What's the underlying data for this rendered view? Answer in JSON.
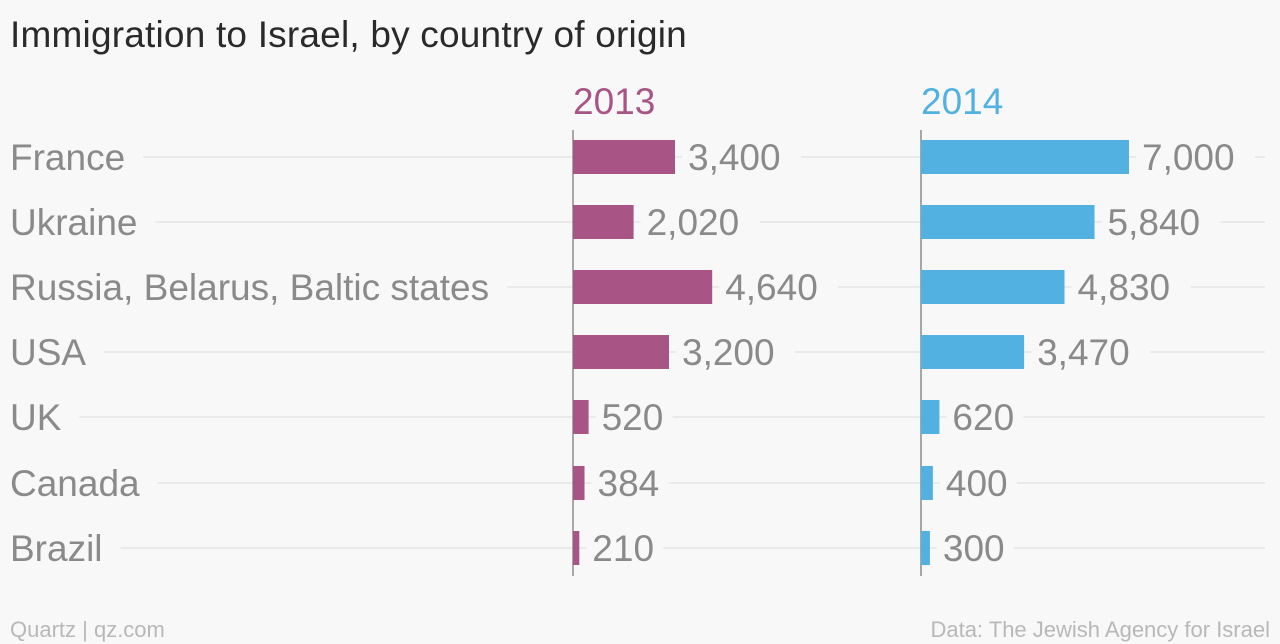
{
  "title": "Immigration to Israel, by country of origin",
  "footer": {
    "left": "Quartz | qz.com",
    "right": "Data: The Jewish Agency for Israel"
  },
  "colors": {
    "series_2013": "#a85585",
    "series_2014": "#52b1e1",
    "label": "#8a8a8a",
    "gridline": "#e6e6e6",
    "axis": "#8c8c8c"
  },
  "chart_data": {
    "type": "bar",
    "orientation": "horizontal",
    "layout": "small-multiples",
    "title": "Immigration to Israel, by country of origin",
    "categories": [
      "France",
      "Ukraine",
      "Russia, Belarus, Baltic states",
      "USA",
      "UK",
      "Canada",
      "Brazil"
    ],
    "series": [
      {
        "name": "2013",
        "color": "#a85585",
        "values": [
          3400,
          2020,
          4640,
          3200,
          520,
          384,
          210
        ],
        "labels": [
          "3,400",
          "2,020",
          "4,640",
          "3,200",
          "520",
          "384",
          "210"
        ]
      },
      {
        "name": "2014",
        "color": "#52b1e1",
        "values": [
          7000,
          5840,
          4830,
          3470,
          620,
          400,
          300
        ],
        "labels": [
          "7,000",
          "5,840",
          "4,830",
          "3,470",
          "620",
          "400",
          "300"
        ]
      }
    ],
    "xlim": [
      0,
      7000
    ],
    "grid": "horizontal",
    "legend": "panel headers"
  }
}
